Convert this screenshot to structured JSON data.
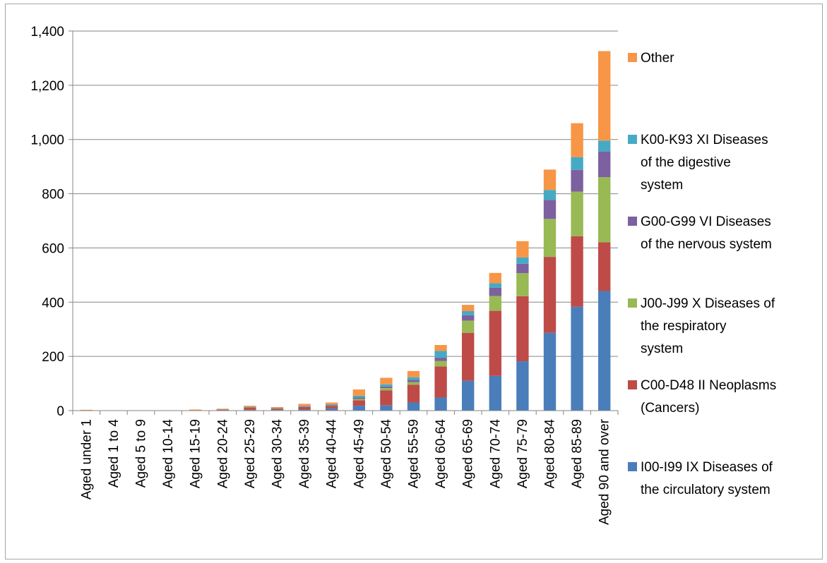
{
  "chart_data": {
    "type": "bar",
    "stacked": true,
    "title": "",
    "xlabel": "",
    "ylabel": "",
    "ylim": [
      0,
      1400
    ],
    "yticks": [
      0,
      200,
      400,
      600,
      800,
      1000,
      1200,
      1400
    ],
    "ytick_labels": [
      "0",
      "200",
      "400",
      "600",
      "800",
      "1,000",
      "1,200",
      "1,400"
    ],
    "grid": true,
    "legend_position": "right",
    "categories": [
      "Aged under 1",
      "Aged 1 to 4",
      "Aged 5 to 9",
      "Aged 10-14",
      "Aged 15-19",
      "Aged 20-24",
      "Aged 25-29",
      "Aged 30-34",
      "Aged 35-39",
      "Aged 40-44",
      "Aged 45-49",
      "Aged 50-54",
      "Aged 55-59",
      "Aged 60-64",
      "Aged 65-69",
      "Aged 70-74",
      "Aged 75-79",
      "Aged 80-84",
      "Aged 85-89",
      "Aged 90 and over"
    ],
    "series": [
      {
        "name": "I00-I99 IX Diseases of the circulatory system",
        "color": "#4a7ebb",
        "values": [
          0,
          0,
          0,
          0,
          0,
          1,
          3,
          2,
          4,
          8,
          18,
          20,
          30,
          48,
          110,
          128,
          182,
          287,
          383,
          441
        ]
      },
      {
        "name": "C00-D48 II Neoplasms (Cancers)",
        "color": "#be4b48",
        "values": [
          0,
          0,
          0,
          0,
          1,
          2,
          8,
          5,
          10,
          10,
          20,
          55,
          65,
          115,
          177,
          240,
          240,
          280,
          260,
          180
        ]
      },
      {
        "name": "J00-J99 X Diseases of the respiratory system",
        "color": "#98b954",
        "values": [
          0,
          0,
          0,
          0,
          0,
          0,
          1,
          1,
          1,
          1,
          5,
          8,
          10,
          20,
          45,
          55,
          85,
          140,
          165,
          240
        ]
      },
      {
        "name": "G00-G99 VI Diseases of the nervous system",
        "color": "#7d60a0",
        "values": [
          0,
          0,
          0,
          0,
          0,
          0,
          1,
          1,
          1,
          2,
          5,
          6,
          8,
          12,
          20,
          30,
          35,
          70,
          80,
          95
        ]
      },
      {
        "name": "K00-K93 XI Diseases of the digestive system",
        "color": "#46aac5",
        "values": [
          0,
          0,
          0,
          0,
          0,
          1,
          1,
          1,
          2,
          3,
          7,
          8,
          10,
          25,
          15,
          17,
          23,
          37,
          47,
          40
        ]
      },
      {
        "name": "Other",
        "color": "#f79646",
        "values": [
          3,
          0,
          0,
          0,
          3,
          3,
          4,
          3,
          7,
          6,
          23,
          24,
          23,
          22,
          23,
          38,
          60,
          75,
          125,
          330
        ]
      }
    ]
  }
}
